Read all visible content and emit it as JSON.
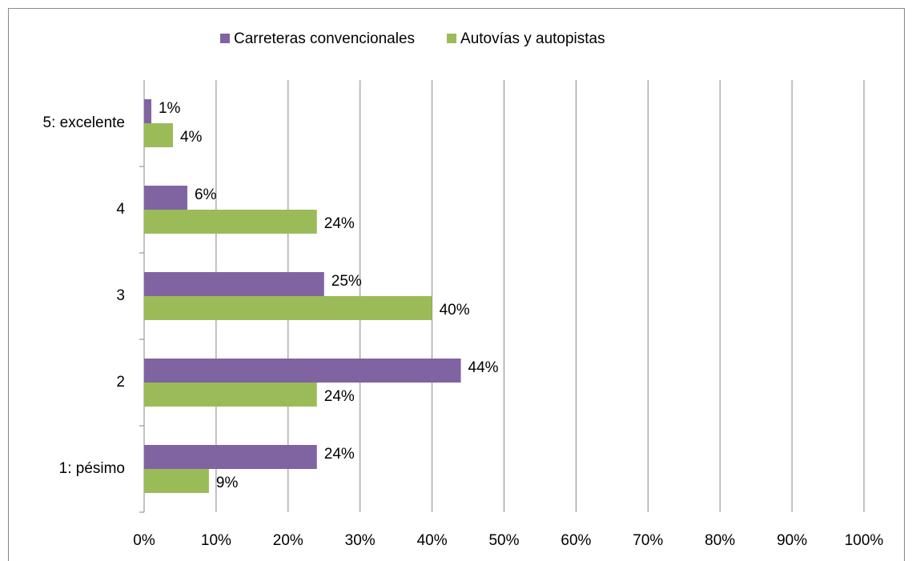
{
  "chart_data": {
    "type": "barh",
    "categories": [
      "1: pésimo",
      "2",
      "3",
      "4",
      "5: excelente"
    ],
    "series": [
      {
        "name": "Carreteras convencionales",
        "color": "#8064a2",
        "values": [
          24,
          44,
          25,
          6,
          1
        ],
        "value_labels": [
          "24%",
          "44%",
          "25%",
          "6%",
          "1%"
        ]
      },
      {
        "name": "Autovías y autopistas",
        "color": "#9bbb59",
        "values": [
          9,
          24,
          40,
          24,
          4
        ],
        "value_labels": [
          "9%",
          "24%",
          "40%",
          "24%",
          "4%"
        ]
      }
    ],
    "xlim": [
      0,
      100
    ],
    "xticks": [
      {
        "value": 0,
        "label": "0%"
      },
      {
        "value": 10,
        "label": "10%"
      },
      {
        "value": 20,
        "label": "20%"
      },
      {
        "value": 30,
        "label": "30%"
      },
      {
        "value": 40,
        "label": "40%"
      },
      {
        "value": 50,
        "label": "50%"
      },
      {
        "value": 60,
        "label": "60%"
      },
      {
        "value": 70,
        "label": "70%"
      },
      {
        "value": 80,
        "label": "80%"
      },
      {
        "value": 90,
        "label": "90%"
      },
      {
        "value": 100,
        "label": "100%"
      }
    ],
    "grid": true,
    "legend": "top"
  }
}
